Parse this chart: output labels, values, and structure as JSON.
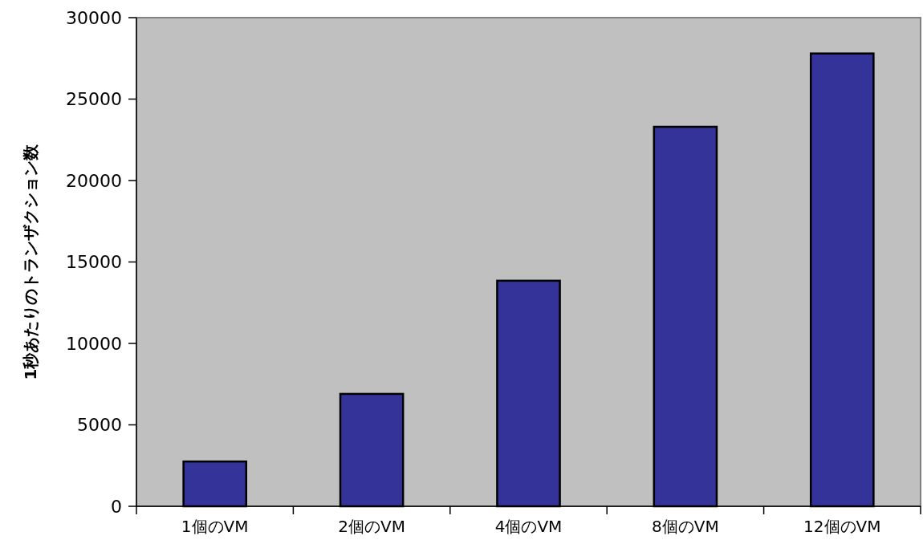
{
  "chart_data": {
    "type": "bar",
    "ylabel": "1秒あたりのトランザクション数",
    "categories": [
      "1個のVM",
      "2個のVM",
      "4個のVM",
      "8個のVM",
      "12個のVM"
    ],
    "values": [
      2750,
      6900,
      13850,
      23300,
      27800
    ],
    "color": "#333399",
    "ylim": [
      0,
      30000
    ],
    "yticks": [
      0,
      5000,
      10000,
      15000,
      20000,
      25000,
      30000
    ],
    "grid": false
  }
}
